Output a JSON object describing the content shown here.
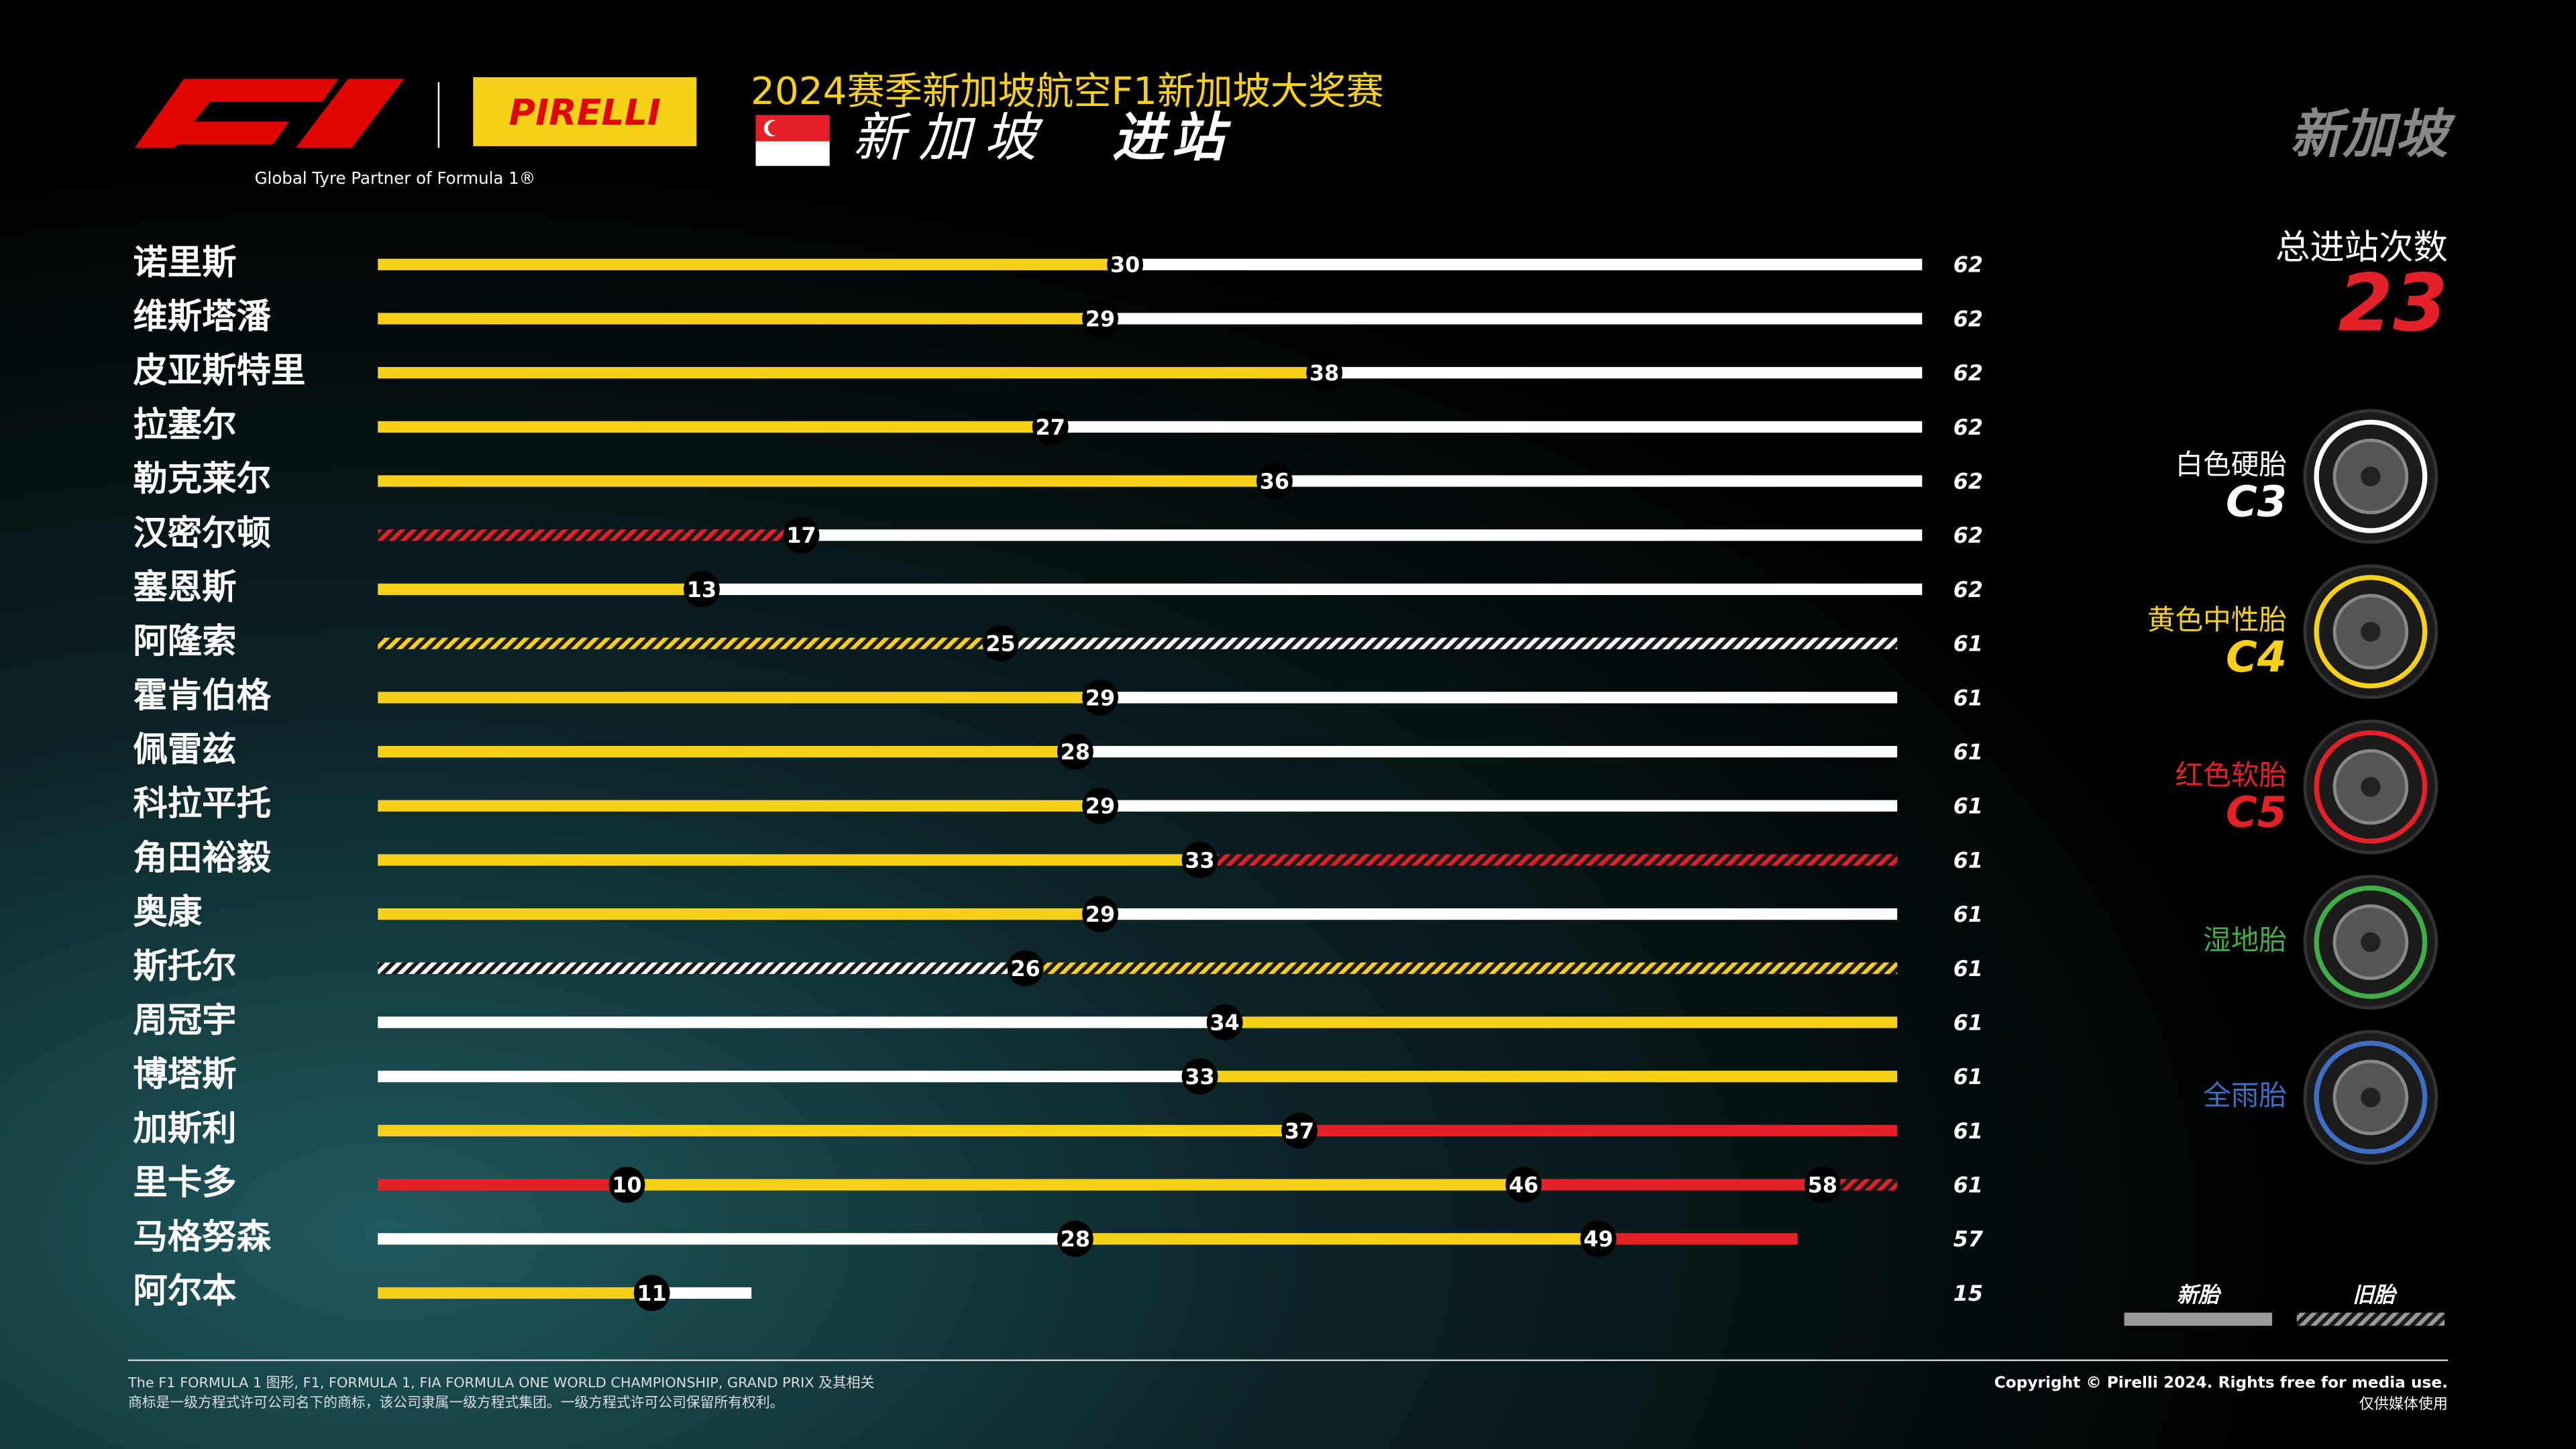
{
  "header": {
    "partner": "Global Tyre Partner of Formula 1®",
    "brand": "PIRELLI",
    "event": "2024赛季新加坡航空F1新加坡大奖赛",
    "location": "新加坡",
    "subtitle": "进站",
    "badge": "新加坡"
  },
  "chart_data": {
    "type": "stint",
    "xlim": [
      0,
      62
    ],
    "rows": [
      {
        "driver": "诺里斯",
        "stops": [
          30
        ],
        "laps": 62,
        "stints": [
          {
            "tyre": "C4",
            "used": false
          },
          {
            "tyre": "C3",
            "used": false
          }
        ]
      },
      {
        "driver": "维斯塔潘",
        "stops": [
          29
        ],
        "laps": 62,
        "stints": [
          {
            "tyre": "C4",
            "used": false
          },
          {
            "tyre": "C3",
            "used": false
          }
        ]
      },
      {
        "driver": "皮亚斯特里",
        "stops": [
          38
        ],
        "laps": 62,
        "stints": [
          {
            "tyre": "C4",
            "used": false
          },
          {
            "tyre": "C3",
            "used": false
          }
        ]
      },
      {
        "driver": "拉塞尔",
        "stops": [
          27
        ],
        "laps": 62,
        "stints": [
          {
            "tyre": "C4",
            "used": false
          },
          {
            "tyre": "C3",
            "used": false
          }
        ]
      },
      {
        "driver": "勒克莱尔",
        "stops": [
          36
        ],
        "laps": 62,
        "stints": [
          {
            "tyre": "C4",
            "used": false
          },
          {
            "tyre": "C3",
            "used": false
          }
        ]
      },
      {
        "driver": "汉密尔顿",
        "stops": [
          17
        ],
        "laps": 62,
        "stints": [
          {
            "tyre": "C5",
            "used": true
          },
          {
            "tyre": "C3",
            "used": false
          }
        ]
      },
      {
        "driver": "塞恩斯",
        "stops": [
          13
        ],
        "laps": 62,
        "stints": [
          {
            "tyre": "C4",
            "used": false
          },
          {
            "tyre": "C3",
            "used": false
          }
        ]
      },
      {
        "driver": "阿隆索",
        "stops": [
          25
        ],
        "laps": 61,
        "stints": [
          {
            "tyre": "C4",
            "used": true
          },
          {
            "tyre": "C3",
            "used": true
          }
        ]
      },
      {
        "driver": "霍肯伯格",
        "stops": [
          29
        ],
        "laps": 61,
        "stints": [
          {
            "tyre": "C4",
            "used": false
          },
          {
            "tyre": "C3",
            "used": false
          }
        ]
      },
      {
        "driver": "佩雷兹",
        "stops": [
          28
        ],
        "laps": 61,
        "stints": [
          {
            "tyre": "C4",
            "used": false
          },
          {
            "tyre": "C3",
            "used": false
          }
        ]
      },
      {
        "driver": "科拉平托",
        "stops": [
          29
        ],
        "laps": 61,
        "stints": [
          {
            "tyre": "C4",
            "used": false
          },
          {
            "tyre": "C3",
            "used": false
          }
        ]
      },
      {
        "driver": "角田裕毅",
        "stops": [
          33
        ],
        "laps": 61,
        "stints": [
          {
            "tyre": "C4",
            "used": false
          },
          {
            "tyre": "C5",
            "used": true
          }
        ]
      },
      {
        "driver": "奥康",
        "stops": [
          29
        ],
        "laps": 61,
        "stints": [
          {
            "tyre": "C4",
            "used": false
          },
          {
            "tyre": "C3",
            "used": false
          }
        ]
      },
      {
        "driver": "斯托尔",
        "stops": [
          26
        ],
        "laps": 61,
        "stints": [
          {
            "tyre": "C3",
            "used": true
          },
          {
            "tyre": "C4",
            "used": true
          }
        ]
      },
      {
        "driver": "周冠宇",
        "stops": [
          34
        ],
        "laps": 61,
        "stints": [
          {
            "tyre": "C3",
            "used": false
          },
          {
            "tyre": "C4",
            "used": false
          }
        ]
      },
      {
        "driver": "博塔斯",
        "stops": [
          33
        ],
        "laps": 61,
        "stints": [
          {
            "tyre": "C3",
            "used": false
          },
          {
            "tyre": "C4",
            "used": false
          }
        ]
      },
      {
        "driver": "加斯利",
        "stops": [
          37
        ],
        "laps": 61,
        "stints": [
          {
            "tyre": "C4",
            "used": false
          },
          {
            "tyre": "C5",
            "used": false
          }
        ]
      },
      {
        "driver": "里卡多",
        "stops": [
          10,
          46,
          58
        ],
        "laps": 61,
        "stints": [
          {
            "tyre": "C5",
            "used": false
          },
          {
            "tyre": "C4",
            "used": false
          },
          {
            "tyre": "C5",
            "used": false
          },
          {
            "tyre": "C5",
            "used": true
          }
        ]
      },
      {
        "driver": "马格努森",
        "stops": [
          28,
          49
        ],
        "laps": 57,
        "stints": [
          {
            "tyre": "C3",
            "used": false
          },
          {
            "tyre": "C4",
            "used": false
          },
          {
            "tyre": "C5",
            "used": false
          }
        ]
      },
      {
        "driver": "阿尔本",
        "stops": [
          11
        ],
        "laps": 15,
        "stints": [
          {
            "tyre": "C4",
            "used": false
          },
          {
            "tyre": "C3",
            "used": false
          }
        ]
      }
    ],
    "total_label": "总进站次数",
    "total": 23,
    "tyres": [
      {
        "name": "白色硬胎",
        "code": "C3",
        "color": "#ffffff"
      },
      {
        "name": "黄色中性胎",
        "code": "C4",
        "color": "#f7d117"
      },
      {
        "name": "红色软胎",
        "code": "C5",
        "color": "#e42128"
      },
      {
        "name": "湿地胎",
        "color": "#3fae49"
      },
      {
        "name": "全雨胎",
        "color": "#3e6fc4"
      }
    ],
    "condition": {
      "new": "新胎",
      "used": "旧胎"
    }
  },
  "footer": {
    "legal": [
      "The F1 FORMULA 1 图形, F1, FORMULA 1, FIA FORMULA ONE WORLD CHAMPIONSHIP, GRAND PRIX 及其相关",
      "商标是一级方程式许可公司名下的商标，该公司隶属一级方程式集团。一级方程式许可公司保留所有权利。"
    ],
    "copyright": "Copyright © Pirelli 2024. Rights free for media use.",
    "media": "仅供媒体使用"
  }
}
